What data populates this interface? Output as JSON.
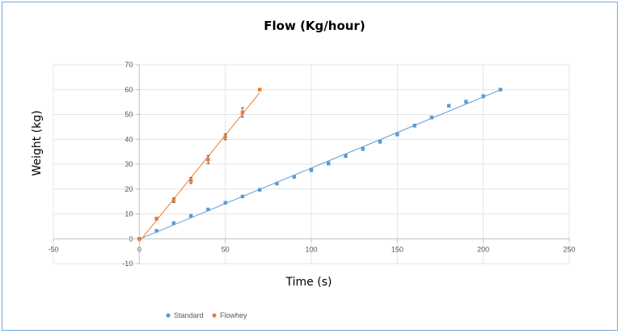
{
  "chart_data": {
    "type": "scatter",
    "title": "Flow (Kg/hour)",
    "xlabel": "Time (s)",
    "ylabel": "Weight (kg)",
    "xlim": [
      -50,
      250
    ],
    "ylim": [
      -10,
      70
    ],
    "x_ticks": [
      "-50",
      "0",
      "50",
      "100",
      "150",
      "200",
      "250"
    ],
    "y_ticks": [
      "-10",
      "0",
      "10",
      "20",
      "30",
      "40",
      "50",
      "60",
      "70"
    ],
    "grid": true,
    "legend_position": "bottom",
    "series": [
      {
        "name": "Standard",
        "color": "#5b9bd5",
        "trendline": true,
        "error_bars": true,
        "x": [
          0,
          10,
          20,
          30,
          40,
          50,
          60,
          70,
          80,
          90,
          100,
          110,
          120,
          130,
          140,
          150,
          160,
          170,
          180,
          190,
          200,
          210
        ],
        "y": [
          0,
          3.2,
          6.3,
          9.2,
          11.8,
          14.5,
          17.0,
          19.7,
          22.2,
          24.9,
          27.6,
          30.3,
          33.3,
          36.1,
          39.0,
          42.0,
          45.5,
          48.8,
          53.5,
          55.1,
          57.3,
          60.0
        ],
        "err": [
          0.4,
          0.5,
          0.5,
          0.5,
          0.5,
          0.5,
          0.5,
          0.5,
          0.5,
          0.5,
          0.6,
          0.6,
          0.6,
          0.6,
          0.6,
          0.6,
          0.6,
          0.6,
          0.6,
          0.6,
          0.6,
          0.5
        ]
      },
      {
        "name": "Flowhey",
        "color": "#ed7d31",
        "trendline": true,
        "error_bars": true,
        "x": [
          0,
          10,
          20,
          30,
          40,
          50,
          60,
          70
        ],
        "y": [
          0,
          8.1,
          15.5,
          23.4,
          31.8,
          41.0,
          50.8,
          60.0
        ],
        "err": [
          0.5,
          0.6,
          0.9,
          1.2,
          1.6,
          1.2,
          1.9,
          0.5
        ]
      }
    ]
  }
}
